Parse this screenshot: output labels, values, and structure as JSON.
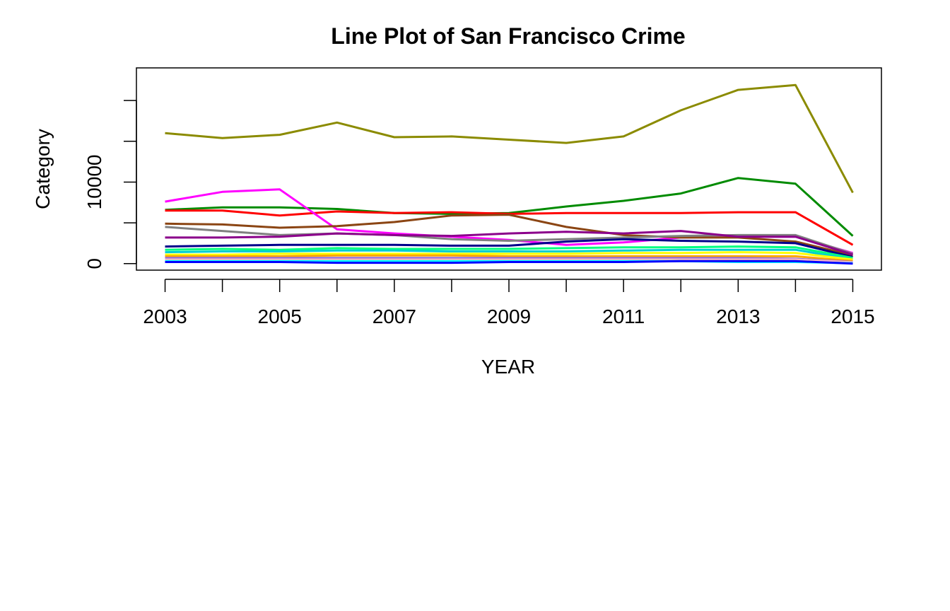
{
  "chart_data": {
    "type": "line",
    "title": "Line Plot of San Francisco Crime",
    "xlabel": "YEAR",
    "ylabel": "Category",
    "x": [
      2003,
      2004,
      2005,
      2006,
      2007,
      2008,
      2009,
      2010,
      2011,
      2012,
      2013,
      2014,
      2015
    ],
    "x_tick_labels": [
      "2003",
      "2005",
      "2007",
      "2009",
      "2011",
      "2013",
      "2015"
    ],
    "y_tick_labels": [
      "0",
      "10000"
    ],
    "xlim": [
      2002.5,
      2015.5
    ],
    "ylim": [
      -800,
      24000
    ],
    "grid": false,
    "series": [
      {
        "color": "#8B8B00",
        "values": [
          16000,
          15400,
          15800,
          17300,
          15500,
          15600,
          15200,
          14800,
          15600,
          18800,
          21300,
          21900,
          8700
        ]
      },
      {
        "color": "#008B00",
        "values": [
          6600,
          6900,
          6900,
          6700,
          6200,
          6100,
          6200,
          7000,
          7700,
          8600,
          10500,
          9800,
          3400
        ]
      },
      {
        "color": "#FF0000",
        "values": [
          6500,
          6500,
          5900,
          6400,
          6200,
          6300,
          6100,
          6200,
          6200,
          6200,
          6300,
          6300,
          2300
        ]
      },
      {
        "color": "#FF00FF",
        "values": [
          7600,
          8800,
          9100,
          4200,
          3700,
          3300,
          2900,
          2300,
          2600,
          3200,
          3300,
          3300,
          1300
        ]
      },
      {
        "color": "#8B4513",
        "values": [
          4900,
          4800,
          4400,
          4600,
          5100,
          5900,
          6000,
          4500,
          3500,
          3200,
          3200,
          2700,
          1000
        ]
      },
      {
        "color": "#808080",
        "values": [
          4500,
          4000,
          3500,
          3700,
          3500,
          3000,
          2800,
          3000,
          3200,
          3400,
          3500,
          3500,
          1200
        ]
      },
      {
        "color": "#8B008B",
        "values": [
          3200,
          3200,
          3300,
          3700,
          3500,
          3400,
          3700,
          3900,
          3700,
          4000,
          3300,
          3300,
          1100
        ]
      },
      {
        "color": "#00008B",
        "values": [
          2100,
          2200,
          2300,
          2300,
          2300,
          2200,
          2200,
          2700,
          3000,
          2800,
          2700,
          2500,
          800
        ]
      },
      {
        "color": "#00FF7F",
        "values": [
          1700,
          1800,
          1700,
          1900,
          1800,
          1800,
          1800,
          1900,
          2000,
          2000,
          2100,
          2000,
          700
        ]
      },
      {
        "color": "#00CED1",
        "values": [
          1400,
          1500,
          1500,
          1600,
          1600,
          1500,
          1500,
          1500,
          1600,
          1700,
          1700,
          1700,
          500
        ]
      },
      {
        "color": "#FFFF00",
        "values": [
          1100,
          1100,
          1200,
          1200,
          1200,
          1200,
          1200,
          1200,
          1300,
          1300,
          1400,
          1300,
          500
        ]
      },
      {
        "color": "#FFA500",
        "values": [
          900,
          900,
          900,
          1000,
          1000,
          1000,
          900,
          900,
          900,
          900,
          900,
          900,
          300
        ]
      },
      {
        "color": "#9370DB",
        "values": [
          700,
          700,
          700,
          700,
          700,
          700,
          700,
          700,
          700,
          700,
          700,
          600,
          200
        ]
      },
      {
        "color": "#FFB6C1",
        "values": [
          500,
          500,
          500,
          500,
          500,
          500,
          500,
          500,
          500,
          500,
          500,
          500,
          150
        ]
      },
      {
        "color": "#00FFFF",
        "values": [
          300,
          300,
          300,
          300,
          300,
          300,
          300,
          300,
          300,
          300,
          200,
          200,
          50
        ]
      },
      {
        "color": "#0000FF",
        "values": [
          200,
          200,
          200,
          100,
          100,
          100,
          200,
          200,
          200,
          300,
          300,
          300,
          0
        ]
      }
    ]
  }
}
